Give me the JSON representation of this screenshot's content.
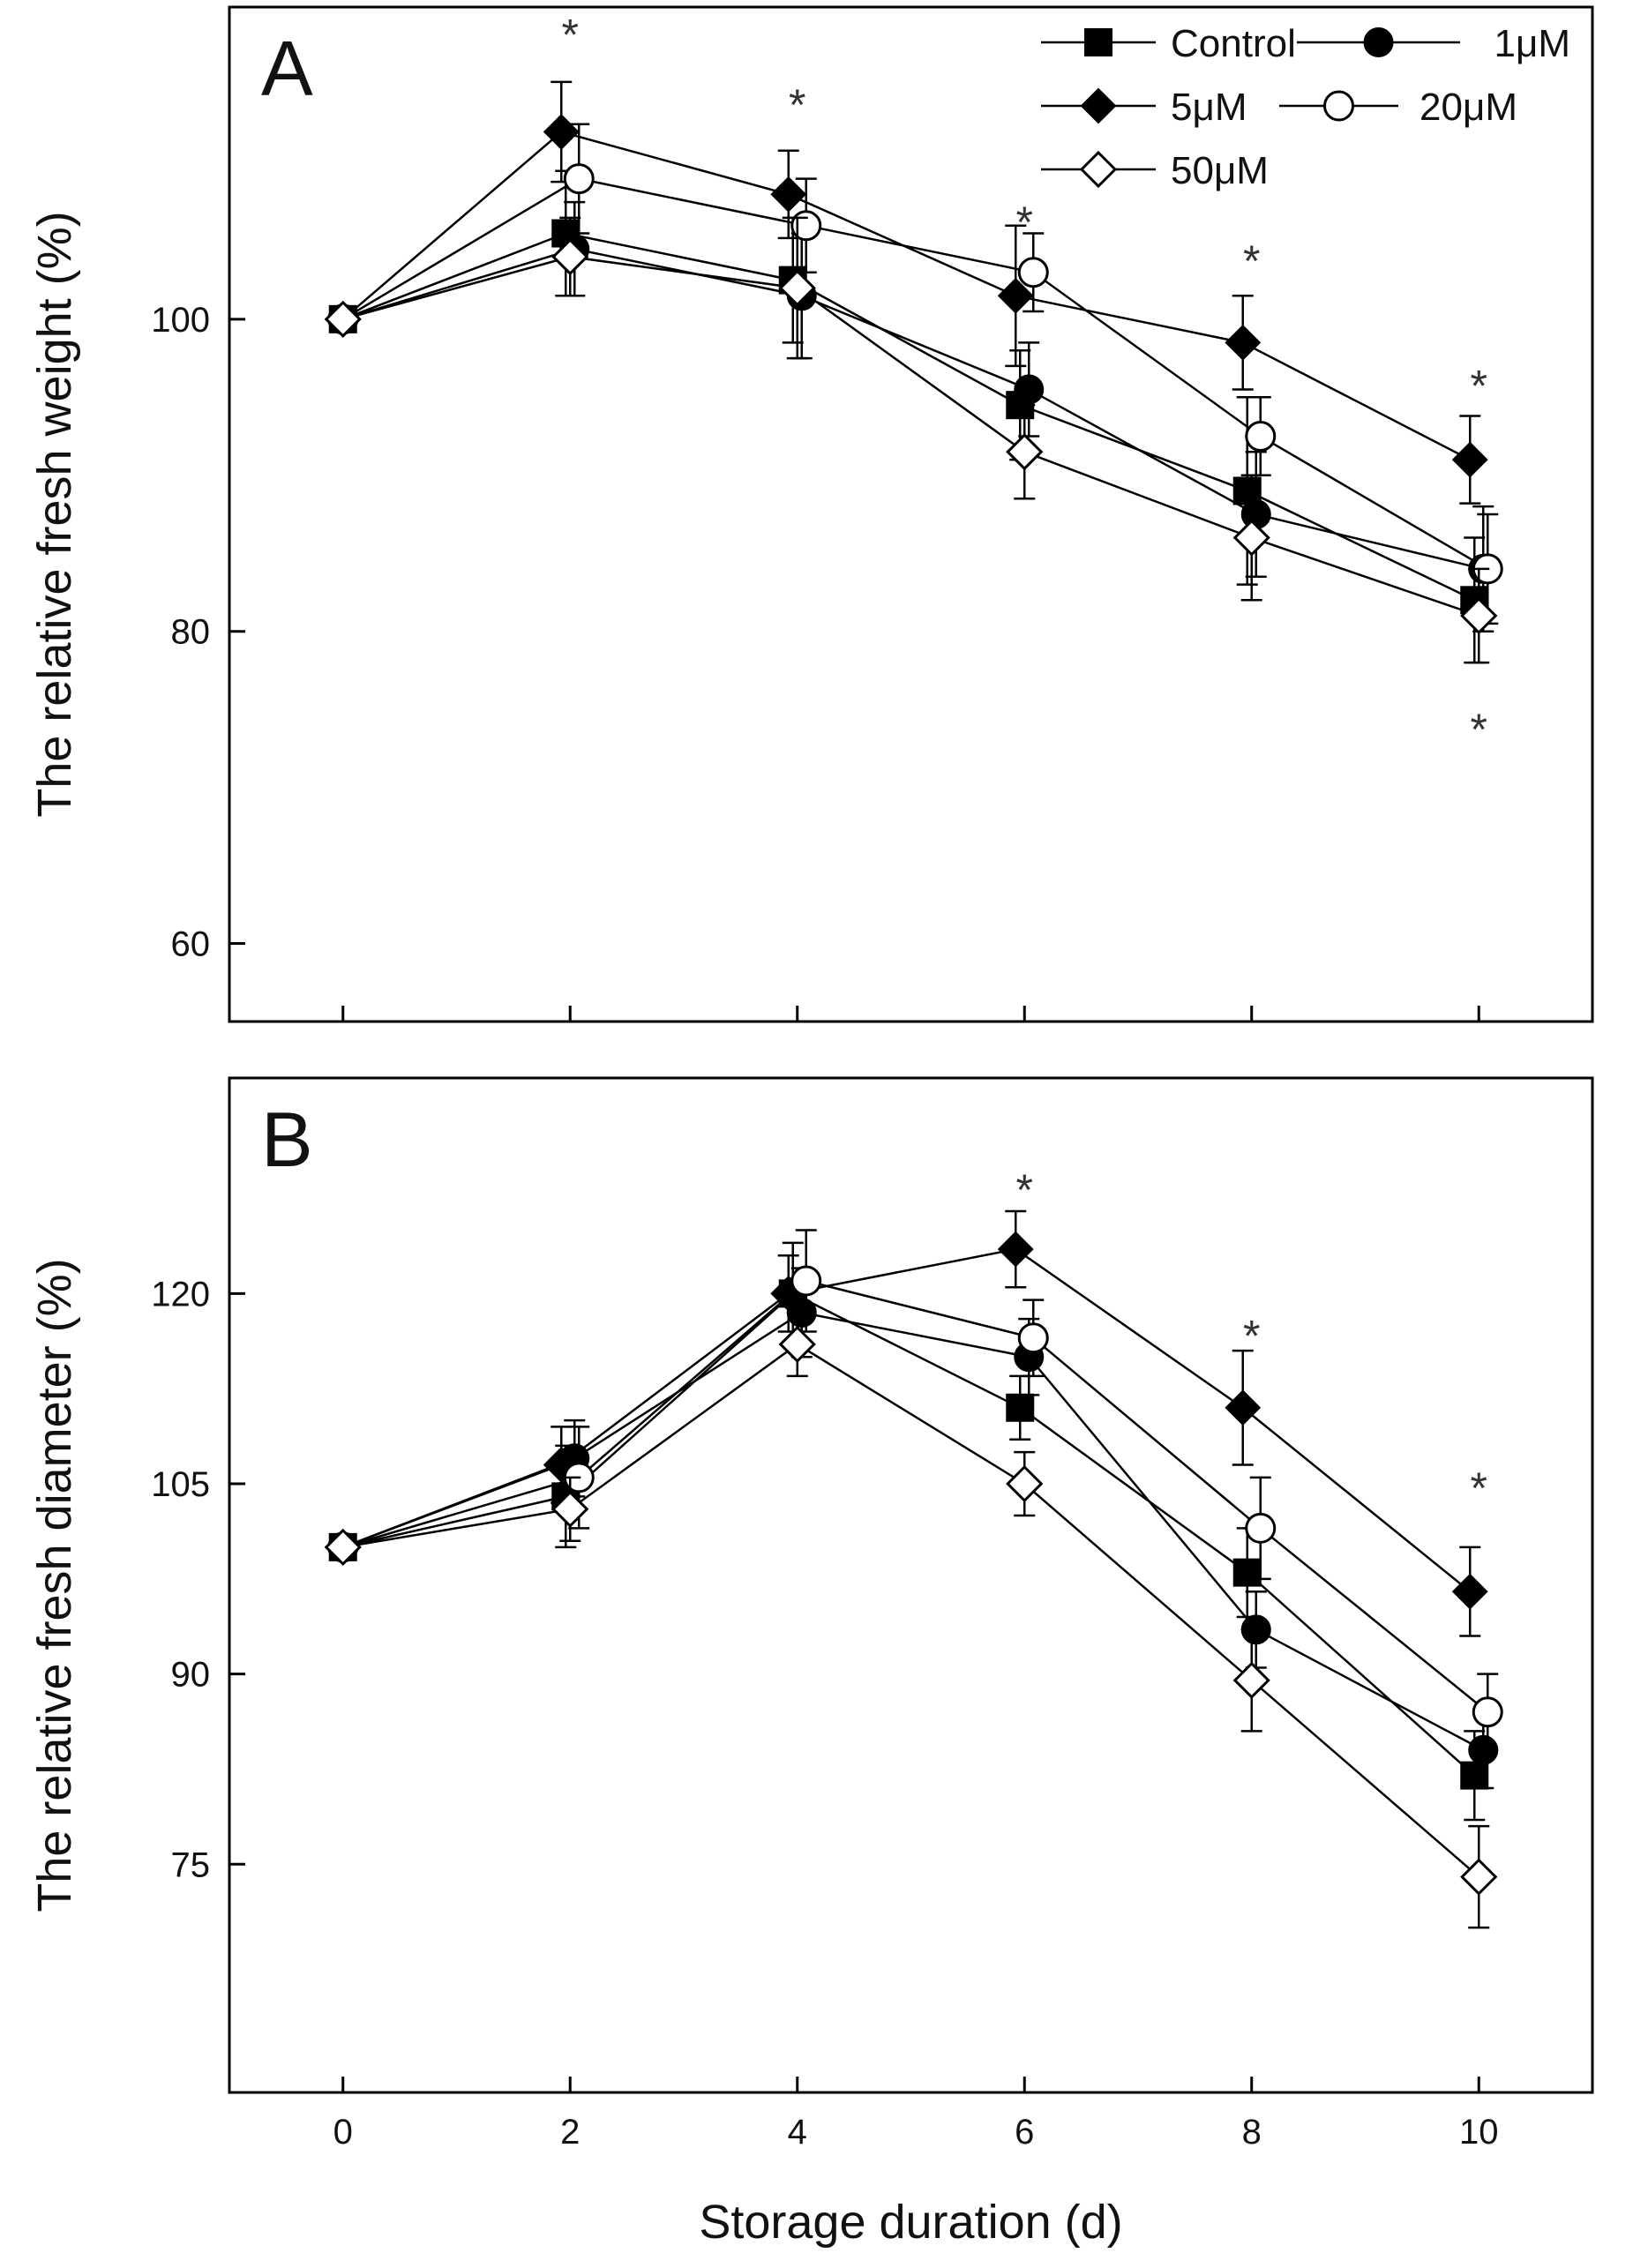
{
  "chart_data": [
    {
      "type": "line",
      "panel_label": "A",
      "ylabel": "The relative fresh weight (%)",
      "xlabel": "",
      "x": [
        0,
        2,
        4,
        6,
        8,
        10
      ],
      "x_tick_labels": [],
      "y_ticks": [
        "60",
        "80",
        "100"
      ],
      "ylim": [
        55,
        120
      ],
      "xlim": [
        -1,
        11
      ],
      "grid": false,
      "legend_position": "top-right",
      "significance_marks": [
        {
          "x": 2,
          "y": 118.5,
          "label": "*"
        },
        {
          "x": 4,
          "y": 114,
          "label": "*"
        },
        {
          "x": 6,
          "y": 106.5,
          "label": "*"
        },
        {
          "x": 8,
          "y": 104,
          "label": "*"
        },
        {
          "x": 10,
          "y": 96,
          "label": "*"
        },
        {
          "x": 10,
          "y": 74,
          "label": "*"
        }
      ],
      "series": [
        {
          "name": "Control",
          "marker": "square-filled",
          "values": [
            100,
            105.5,
            102.5,
            94.5,
            89,
            82
          ],
          "errors": [
            0,
            4,
            4,
            3.5,
            6,
            4
          ]
        },
        {
          "name": "1μM",
          "marker": "circle-filled",
          "values": [
            100,
            104.5,
            101.5,
            95.5,
            87.5,
            84
          ],
          "errors": [
            0,
            3,
            4,
            3,
            4,
            4
          ]
        },
        {
          "name": "5μM",
          "marker": "diamond-filled",
          "values": [
            100,
            112,
            108,
            101.5,
            98.5,
            91
          ],
          "errors": [
            0,
            3.2,
            2.8,
            4.5,
            3,
            2.8
          ]
        },
        {
          "name": "20μM",
          "marker": "circle-open",
          "values": [
            100,
            109,
            106,
            103,
            92.5,
            84
          ],
          "errors": [
            0,
            3.5,
            3,
            2.5,
            2.5,
            3.5
          ]
        },
        {
          "name": "50μM",
          "marker": "diamond-open",
          "values": [
            100,
            104,
            102,
            91.5,
            86,
            81
          ],
          "errors": [
            0,
            2.5,
            4.5,
            3,
            4,
            3
          ]
        }
      ]
    },
    {
      "type": "line",
      "panel_label": "B",
      "ylabel": "The relative fresh diameter (%)",
      "xlabel": "Storage duration (d)",
      "x": [
        0,
        2,
        4,
        6,
        8,
        10
      ],
      "x_tick_labels": [
        "0",
        "2",
        "4",
        "6",
        "8",
        "10"
      ],
      "y_ticks": [
        "75",
        "90",
        "105",
        "120"
      ],
      "ylim": [
        57,
        137
      ],
      "xlim": [
        -1,
        11
      ],
      "grid": false,
      "significance_marks": [
        {
          "x": 6,
          "y": 128.5,
          "label": "*"
        },
        {
          "x": 8,
          "y": 117,
          "label": "*"
        },
        {
          "x": 10,
          "y": 105,
          "label": "*"
        }
      ],
      "series": [
        {
          "name": "Control",
          "marker": "square-filled",
          "values": [
            100,
            104,
            120,
            111,
            98,
            82
          ],
          "errors": [
            0,
            4,
            4,
            2.5,
            3.5,
            3.5
          ]
        },
        {
          "name": "1μM",
          "marker": "circle-filled",
          "values": [
            100,
            107,
            118.5,
            115,
            93.5,
            84
          ],
          "errors": [
            0,
            3,
            3.5,
            3,
            3,
            3
          ]
        },
        {
          "name": "5μM",
          "marker": "diamond-filled",
          "values": [
            100,
            106.5,
            120,
            123.5,
            111,
            96.5
          ],
          "errors": [
            0,
            3,
            3,
            3,
            4.5,
            3.5
          ]
        },
        {
          "name": "20μM",
          "marker": "circle-open",
          "values": [
            100,
            105.5,
            121,
            116.5,
            101.5,
            87
          ],
          "errors": [
            0,
            4,
            4,
            3,
            4,
            3
          ]
        },
        {
          "name": "50μM",
          "marker": "diamond-open",
          "values": [
            100,
            103,
            116,
            105,
            89.5,
            74
          ],
          "errors": [
            0,
            2.5,
            2.5,
            2.5,
            4,
            4
          ]
        }
      ]
    }
  ]
}
